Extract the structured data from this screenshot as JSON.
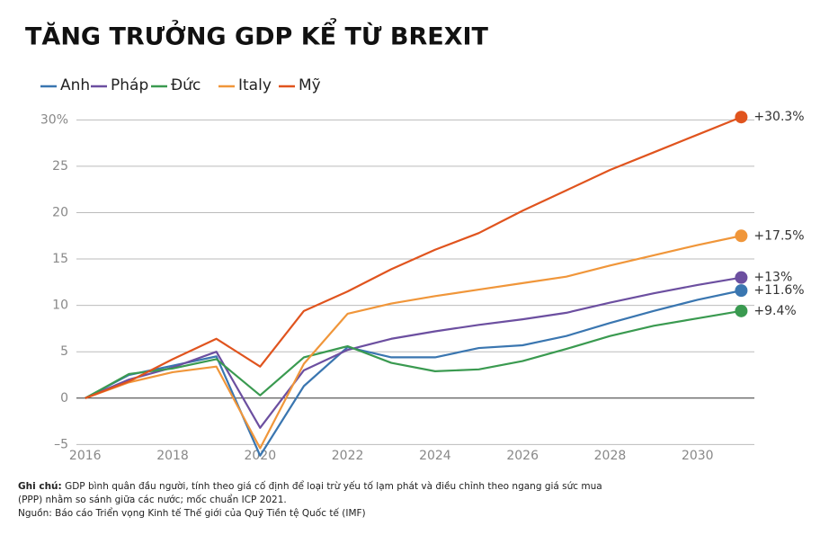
{
  "chart_data": {
    "type": "line",
    "title": "TĂNG TRƯỞNG GDP KỂ TỪ BREXIT",
    "x": [
      2016,
      2017,
      2018,
      2019,
      2020,
      2021,
      2022,
      2023,
      2024,
      2025,
      2026,
      2027,
      2028,
      2029,
      2030,
      2031
    ],
    "series": [
      {
        "name": "Anh",
        "color": "#3a76b0",
        "end_label": "+11.6%",
        "values": [
          0,
          2.5,
          3.5,
          4.5,
          -6.2,
          1.3,
          5.5,
          4.4,
          4.4,
          5.4,
          5.7,
          6.7,
          8.1,
          9.4,
          10.6,
          11.6
        ]
      },
      {
        "name": "Pháp",
        "color": "#6c4fa0",
        "end_label": "+13%",
        "values": [
          0,
          2.0,
          3.3,
          5.0,
          -3.2,
          3.0,
          5.2,
          6.4,
          7.2,
          7.9,
          8.5,
          9.2,
          10.3,
          11.3,
          12.2,
          13.0
        ]
      },
      {
        "name": "Đức",
        "color": "#3a9a50",
        "end_label": "+9.4%",
        "values": [
          0,
          2.6,
          3.2,
          4.2,
          0.3,
          4.4,
          5.6,
          3.8,
          2.9,
          3.1,
          4.0,
          5.3,
          6.7,
          7.8,
          8.6,
          9.4
        ]
      },
      {
        "name": "Italy",
        "color": "#f0963a",
        "end_label": "+17.5%",
        "values": [
          0,
          1.7,
          2.8,
          3.4,
          -5.4,
          3.7,
          9.1,
          10.2,
          11.0,
          11.7,
          12.4,
          13.1,
          14.3,
          15.4,
          16.5,
          17.5
        ]
      },
      {
        "name": "Mỹ",
        "color": "#e0541e",
        "end_label": "+30.3%",
        "values": [
          0,
          1.8,
          4.2,
          6.4,
          3.4,
          9.4,
          11.5,
          13.9,
          16.0,
          17.8,
          20.2,
          22.4,
          24.6,
          26.5,
          28.4,
          30.3
        ]
      }
    ],
    "xlim": [
      2015.8,
      2031.3
    ],
    "xticks": [
      2016,
      2018,
      2020,
      2022,
      2024,
      2026,
      2028,
      2030
    ],
    "ylim": [
      -7,
      31
    ],
    "yticks": [
      {
        "value": -5,
        "label": "–5"
      },
      0,
      5,
      10,
      15,
      20,
      25,
      {
        "value": 30,
        "label": "30%"
      }
    ],
    "grid": true,
    "note_label": "Ghi chú:",
    "note_lines": [
      "GDP bình quân đầu người, tính theo giá cố định để loại trừ yếu tố lạm phát và điều chỉnh theo ngang giá sức mua",
      "(PPP) nhằm so sánh giữa các nước; mốc chuẩn ICP 2021."
    ],
    "source": "Nguồn: Báo cáo Triển vọng Kinh tế Thế giới của Quỹ Tiền tệ Quốc tế (IMF)"
  }
}
